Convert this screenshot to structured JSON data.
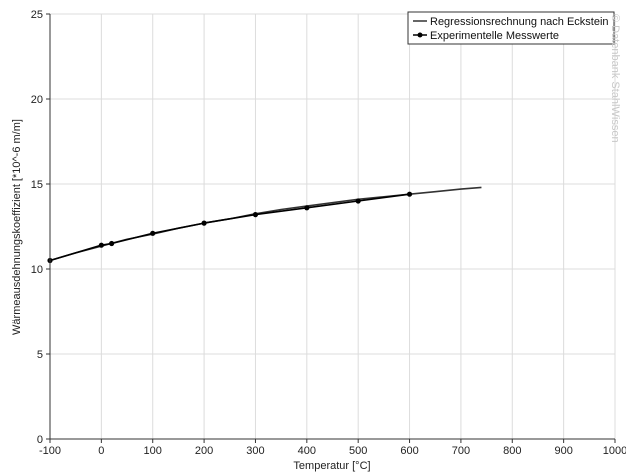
{
  "chart_data": {
    "type": "line",
    "xlabel": "Temperatur [°C]",
    "ylabel": "Wärmeausdehnungskoeffizient [*10^-6 m/m]",
    "xlim": [
      -100,
      1000
    ],
    "ylim": [
      0,
      25
    ],
    "x_ticks": [
      "-100",
      "0",
      "100",
      "200",
      "300",
      "400",
      "500",
      "600",
      "700",
      "800",
      "900",
      "1000"
    ],
    "y_ticks": [
      "0",
      "5",
      "10",
      "15",
      "20",
      "25"
    ],
    "grid": true,
    "legend_position": "top-right",
    "series": [
      {
        "name": "Regressionsrechnung nach Eckstein",
        "color": "#333333",
        "marker": false,
        "x": [
          -100,
          -50,
          0,
          50,
          100,
          150,
          200,
          250,
          300,
          350,
          400,
          450,
          500,
          550,
          600,
          650,
          700,
          740
        ],
        "y": [
          10.5,
          10.95,
          11.35,
          11.75,
          12.05,
          12.4,
          12.7,
          12.95,
          13.25,
          13.5,
          13.7,
          13.9,
          14.1,
          14.25,
          14.4,
          14.55,
          14.7,
          14.8
        ]
      },
      {
        "name": "Experimentelle Messwerte",
        "color": "#000000",
        "marker": true,
        "x": [
          -100,
          0,
          20,
          100,
          200,
          300,
          400,
          500,
          600
        ],
        "y": [
          10.5,
          11.4,
          11.5,
          12.1,
          12.7,
          13.2,
          13.6,
          14.0,
          14.4
        ]
      }
    ]
  },
  "watermark": "© Datenbank StahlWissen"
}
